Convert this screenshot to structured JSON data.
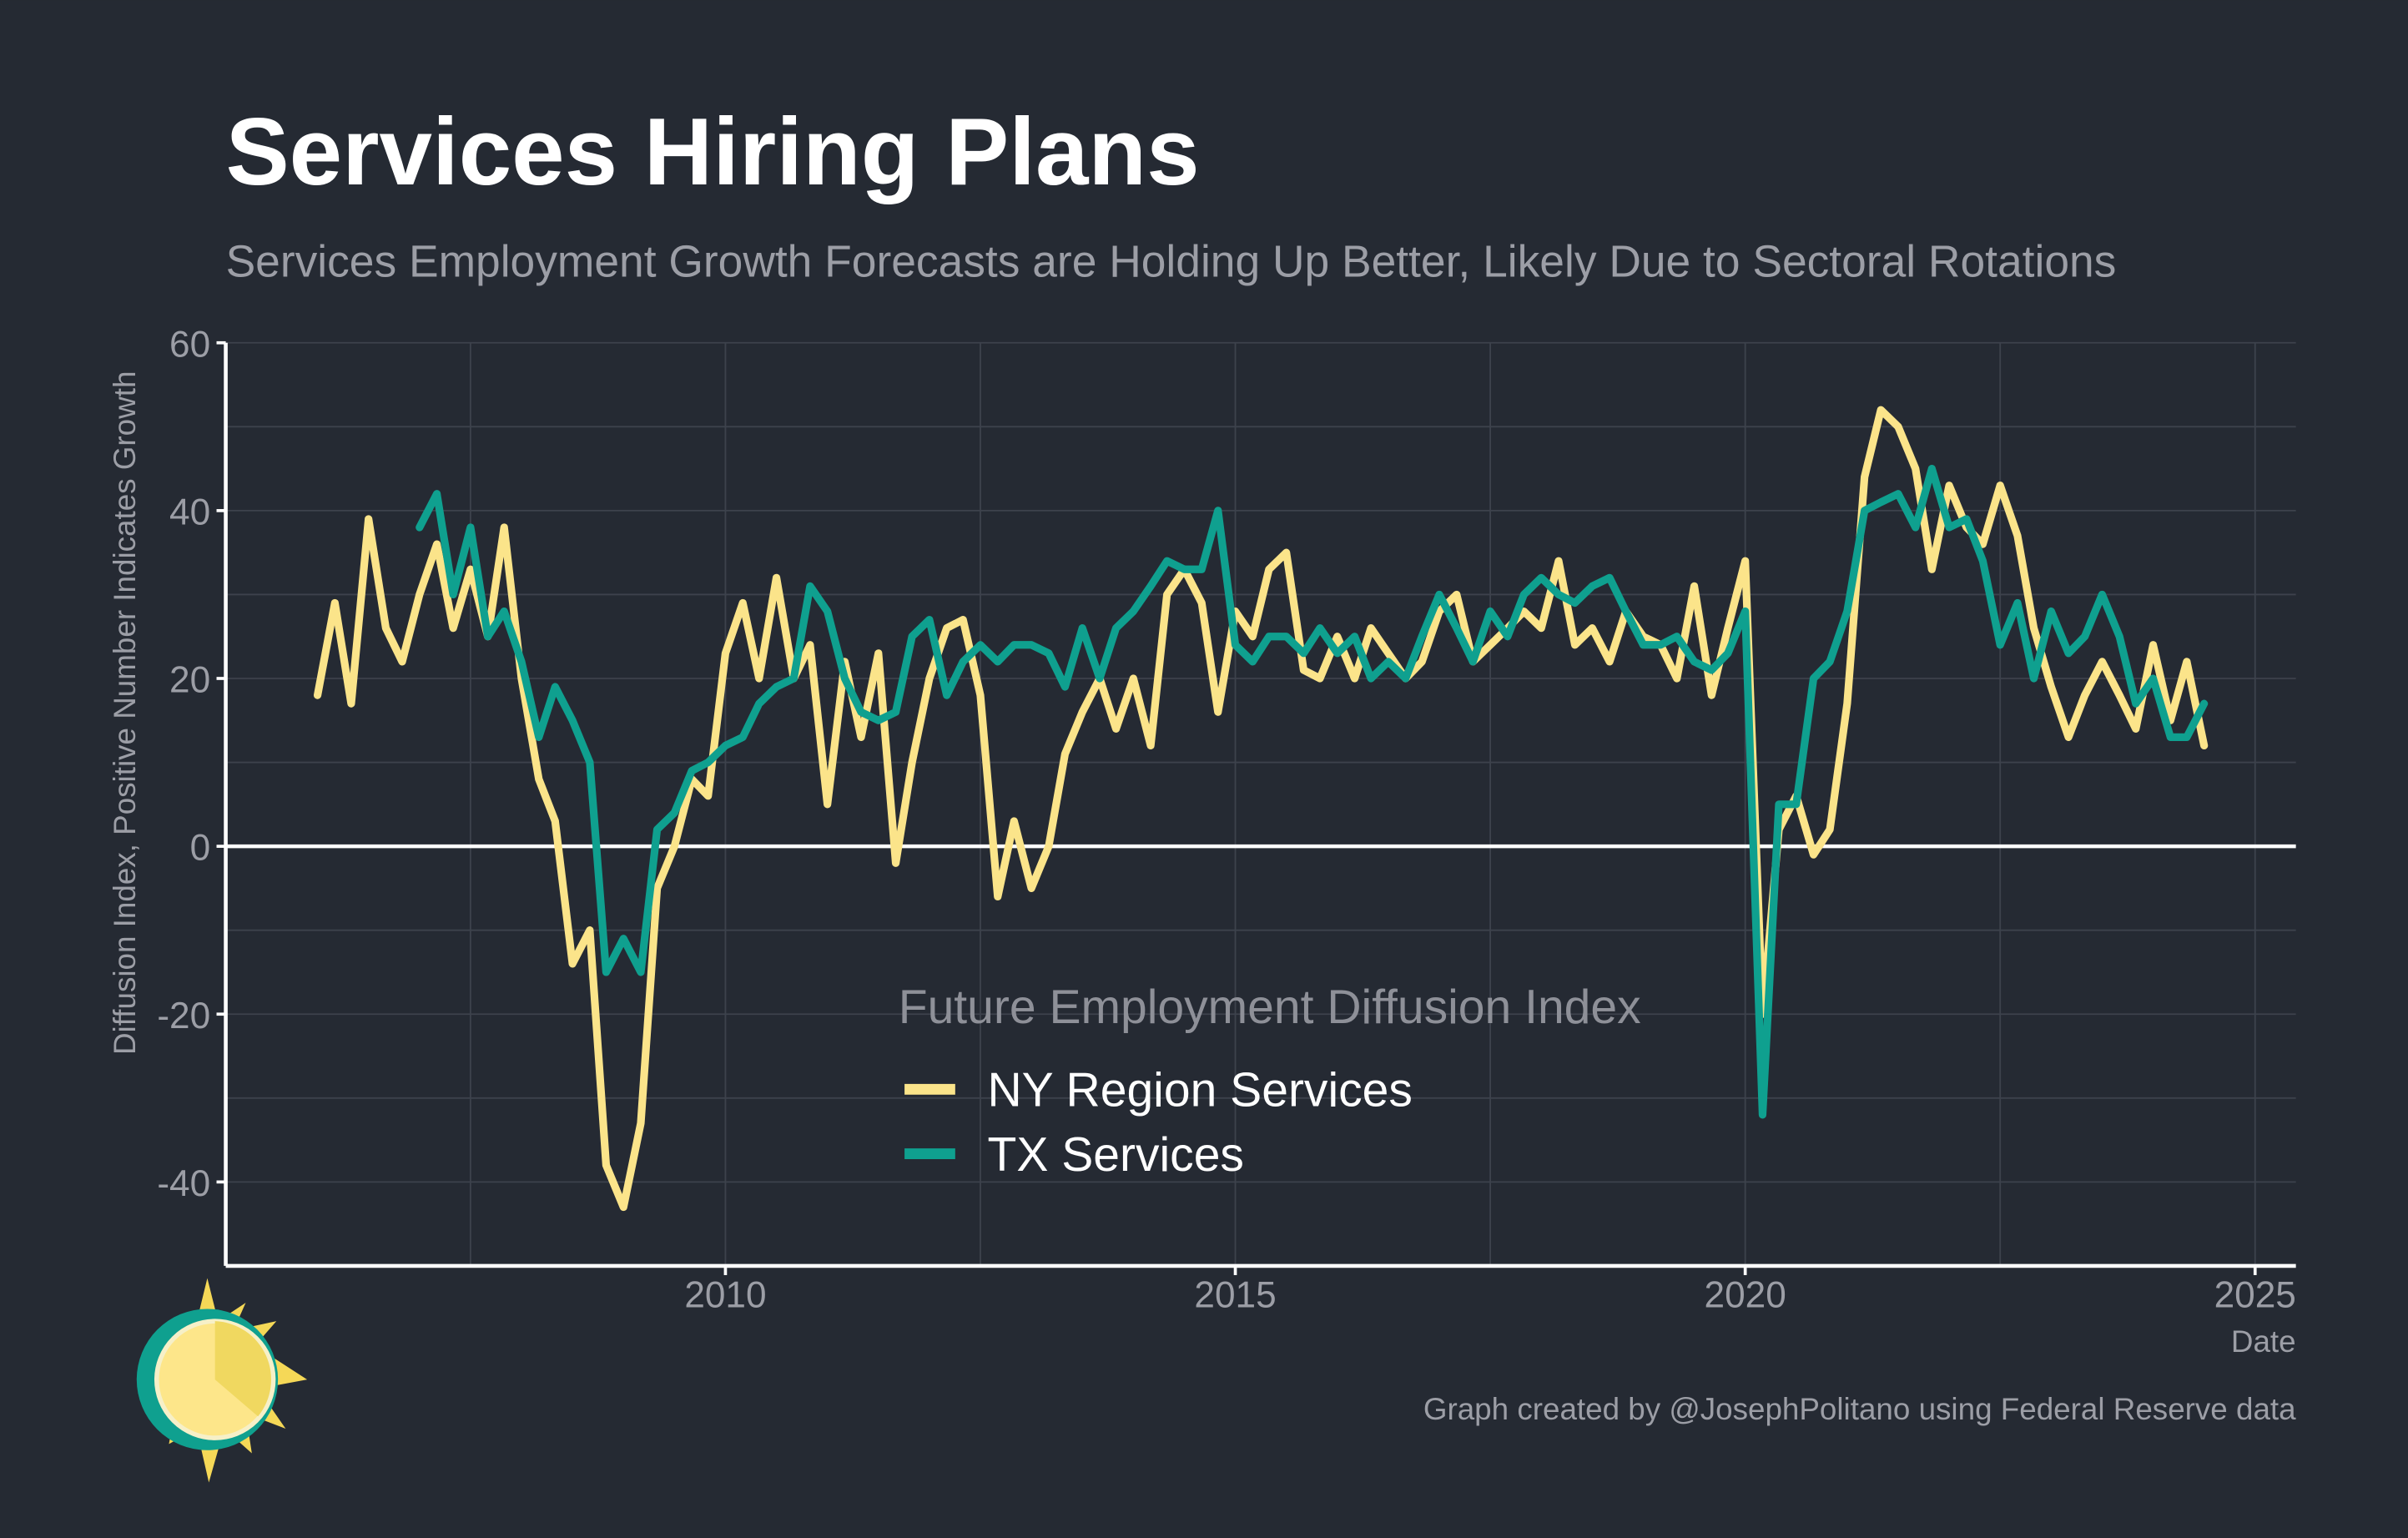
{
  "chart_data": {
    "type": "line",
    "title": "Services Hiring Plans",
    "subtitle": "Services Employment Growth Forecasts are Holding Up Better, Likely Due to Sectoral Rotations",
    "y_label": "Diffusion Index, Positive Number Indicates Growth",
    "x_label": "Date",
    "legend_title": "Future Employment Diffusion Index",
    "caption": "Graph created by @JosephPolitano using Federal Reserve data",
    "xlim": [
      2005.1,
      2025.4
    ],
    "ylim": [
      -50,
      60
    ],
    "xticks": [
      2010,
      2015,
      2020,
      2025
    ],
    "yticks": [
      -40,
      -20,
      0,
      20,
      40,
      60
    ],
    "minor_xticks": [
      2007.5,
      2012.5,
      2017.5,
      2022.5
    ],
    "minor_yticks": [
      -50,
      -30,
      -10,
      10,
      30,
      50
    ],
    "reference_line": 0,
    "grid": true,
    "x": [
      2006.0,
      2006.17,
      2006.33,
      2006.5,
      2006.67,
      2006.83,
      2007.0,
      2007.17,
      2007.33,
      2007.5,
      2007.67,
      2007.83,
      2008.0,
      2008.17,
      2008.33,
      2008.5,
      2008.67,
      2008.83,
      2009.0,
      2009.17,
      2009.33,
      2009.5,
      2009.67,
      2009.83,
      2010.0,
      2010.17,
      2010.33,
      2010.5,
      2010.67,
      2010.83,
      2011.0,
      2011.17,
      2011.33,
      2011.5,
      2011.67,
      2011.83,
      2012.0,
      2012.17,
      2012.33,
      2012.5,
      2012.67,
      2012.83,
      2013.0,
      2013.17,
      2013.33,
      2013.5,
      2013.67,
      2013.83,
      2014.0,
      2014.17,
      2014.33,
      2014.5,
      2014.67,
      2014.83,
      2015.0,
      2015.17,
      2015.33,
      2015.5,
      2015.67,
      2015.83,
      2016.0,
      2016.17,
      2016.33,
      2016.5,
      2016.67,
      2016.83,
      2017.0,
      2017.17,
      2017.33,
      2017.5,
      2017.67,
      2017.83,
      2018.0,
      2018.17,
      2018.33,
      2018.5,
      2018.67,
      2018.83,
      2019.0,
      2019.17,
      2019.33,
      2019.5,
      2019.67,
      2019.83,
      2020.0,
      2020.17,
      2020.33,
      2020.5,
      2020.67,
      2020.83,
      2021.0,
      2021.17,
      2021.33,
      2021.5,
      2021.67,
      2021.83,
      2022.0,
      2022.17,
      2022.33,
      2022.5,
      2022.67,
      2022.83,
      2023.0,
      2023.17,
      2023.33,
      2023.5,
      2023.67,
      2023.83,
      2024.0,
      2024.17,
      2024.33,
      2024.5
    ],
    "series": [
      {
        "name": "NY Region Services",
        "color": "#fbe48a",
        "values": [
          18,
          29,
          17,
          39,
          26,
          22,
          30,
          36,
          26,
          33,
          25,
          38,
          20,
          8,
          3,
          -14,
          -10,
          -38,
          -43,
          -33,
          -5,
          0,
          8,
          6,
          23,
          29,
          20,
          32,
          20,
          24,
          5,
          22,
          13,
          23,
          -2,
          10,
          20,
          26,
          27,
          18,
          -6,
          3,
          -5,
          0,
          11,
          16,
          20,
          14,
          20,
          12,
          30,
          33,
          29,
          16,
          28,
          25,
          33,
          35,
          21,
          20,
          25,
          20,
          26,
          23,
          20,
          22,
          28,
          30,
          22,
          24,
          26,
          28,
          26,
          34,
          24,
          26,
          22,
          28,
          25,
          24,
          20,
          31,
          18,
          26,
          34,
          -20,
          2,
          6,
          -1,
          2,
          17,
          44,
          52,
          50,
          45,
          33,
          43,
          38,
          36,
          43,
          37,
          26,
          19,
          13,
          18,
          22,
          18,
          14,
          24,
          15,
          22,
          12
        ]
      },
      {
        "name": "TX Services",
        "color": "#0fa08f",
        "values": [
          null,
          null,
          null,
          null,
          null,
          null,
          38,
          42,
          30,
          38,
          25,
          28,
          22,
          13,
          19,
          15,
          10,
          -15,
          -11,
          -15,
          2,
          4,
          9,
          10,
          12,
          13,
          17,
          19,
          20,
          31,
          28,
          20,
          16,
          15,
          16,
          25,
          27,
          18,
          22,
          24,
          22,
          24,
          24,
          23,
          19,
          26,
          20,
          26,
          28,
          31,
          34,
          33,
          33,
          40,
          24,
          22,
          25,
          25,
          23,
          26,
          23,
          25,
          20,
          22,
          20,
          25,
          30,
          26,
          22,
          28,
          25,
          30,
          32,
          30,
          29,
          31,
          32,
          28,
          24,
          24,
          25,
          22,
          21,
          23,
          28,
          -32,
          5,
          5,
          20,
          22,
          28,
          40,
          41,
          42,
          38,
          45,
          38,
          39,
          34,
          24,
          29,
          20,
          28,
          23,
          25,
          30,
          25,
          17,
          20,
          13,
          13,
          17
        ]
      }
    ]
  }
}
